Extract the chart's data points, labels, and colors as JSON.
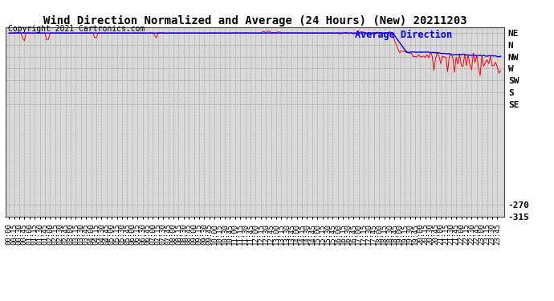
{
  "title": "Wind Direction Normalized and Average (24 Hours) (New) 20211203",
  "copyright": "Copyright 2021 Cartronics.com",
  "legend_blue": "Average Direction",
  "bg_color": "#ffffff",
  "plot_bg_color": "#d8d8d8",
  "grid_color": "#aaaaaa",
  "red_line_color": "#ff0000",
  "blue_line_color": "#0000ff",
  "title_fontsize": 10,
  "axis_fontsize": 6.5,
  "copyright_fontsize": 7,
  "ymin": -315,
  "ymax": 405,
  "ytick_positions": [
    382.5,
    337.5,
    292.5,
    247.5,
    202.5,
    157.5,
    112.5,
    -270,
    -315
  ],
  "ytick_labels": [
    "NE",
    "N",
    "NW",
    "W",
    "SW",
    "S",
    "SE",
    "-270",
    "-315"
  ],
  "grid_positions": [
    382.5,
    337.5,
    292.5,
    247.5,
    202.5,
    157.5,
    112.5,
    -270,
    -315
  ]
}
